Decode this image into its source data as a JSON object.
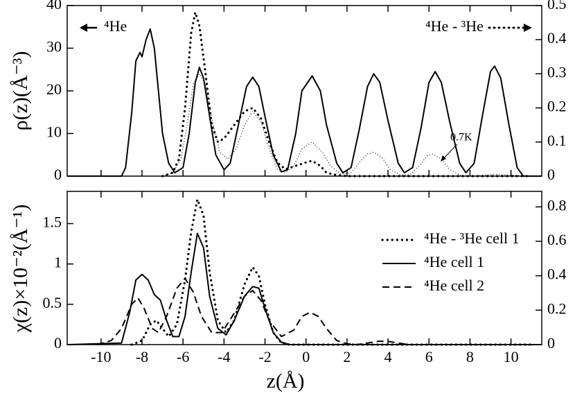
{
  "chart_data": [
    {
      "type": "line",
      "ylabel": "ρ(z)(Å⁻³)",
      "annotations": [
        "⁴He",
        "⁴He - ³He",
        "0.7K"
      ],
      "xlim": [
        -11.65,
        11.5
      ],
      "xticks": [
        -10,
        -8,
        -6,
        -4,
        -2,
        0,
        2,
        4,
        6,
        8,
        10
      ],
      "ylim": [
        0,
        40
      ],
      "yticks": [
        0,
        10,
        20,
        30,
        40
      ],
      "y2lim": [
        0,
        0.5
      ],
      "y2ticks": [
        0,
        0.1,
        0.2,
        0.3,
        0.4,
        0.5
      ],
      "series": [
        {
          "color": "#000000",
          "style": "solid",
          "x": [
            -11.6,
            -9.0,
            -8.8,
            -8.5,
            -8.3,
            -8.1,
            -8.0,
            -7.8,
            -7.6,
            -7.4,
            -7.2,
            -7.0,
            -6.7,
            -6.4,
            -6.0,
            -5.7,
            -5.4,
            -5.2,
            -5.0,
            -4.7,
            -4.4,
            -4.0,
            -3.7,
            -3.3,
            -2.9,
            -2.6,
            -2.3,
            -2.0,
            -1.6,
            -1.2,
            -0.9,
            -0.5,
            -0.2,
            0.3,
            0.7,
            1.0,
            1.5,
            1.8,
            2.2,
            2.6,
            3.0,
            3.3,
            3.6,
            4.0,
            4.5,
            4.8,
            5.2,
            5.6,
            6.0,
            6.3,
            6.6,
            7.0,
            7.5,
            7.8,
            8.2,
            8.6,
            9.0,
            9.2,
            9.5,
            9.9,
            10.3,
            10.6,
            11.5
          ],
          "values": [
            0,
            0,
            2,
            15,
            27,
            29,
            28,
            32,
            34.5,
            30,
            20,
            10,
            3,
            0.8,
            2,
            10,
            22,
            25.5,
            23,
            14,
            5,
            1.5,
            3,
            12,
            21,
            23.2,
            21,
            14,
            5,
            1,
            1.5,
            10,
            20,
            23.5,
            20,
            12,
            3,
            0.8,
            2,
            11,
            21,
            24,
            22,
            13,
            3,
            0.8,
            2,
            11,
            22,
            24.5,
            22,
            13,
            3,
            0.8,
            3,
            14,
            24.5,
            25.8,
            23,
            12,
            2,
            0,
            0
          ]
        },
        {
          "color": "#000000",
          "style": "dotted-thick",
          "axis": "y2",
          "x": [
            -7.0,
            -6.5,
            -6.2,
            -5.9,
            -5.6,
            -5.4,
            -5.2,
            -4.9,
            -4.6,
            -4.3,
            -4.0,
            -3.5,
            -3.0,
            -2.6,
            -2.2,
            -1.8,
            -1.4,
            -1.0,
            -0.5,
            0.0,
            0.3,
            0.7,
            1.0,
            1.5,
            2.0,
            11.0
          ],
          "values": [
            0,
            0.01,
            0.05,
            0.2,
            0.42,
            0.48,
            0.44,
            0.3,
            0.15,
            0.1,
            0.11,
            0.15,
            0.19,
            0.2,
            0.17,
            0.1,
            0.04,
            0.02,
            0.03,
            0.04,
            0.045,
            0.03,
            0.01,
            0.003,
            0,
            0
          ]
        },
        {
          "color": "#000000",
          "style": "dotted-thin",
          "axis": "y2",
          "x": [
            -7.0,
            -6.5,
            -6.1,
            -5.8,
            -5.5,
            -5.2,
            -4.9,
            -4.6,
            -4.2,
            -3.8,
            -3.4,
            -3.0,
            -2.6,
            -2.2,
            -1.8,
            -1.4,
            -1.0,
            -0.6,
            -0.2,
            0.3,
            0.8,
            1.2,
            1.7,
            2.2,
            2.6,
            3.0,
            3.3,
            3.7,
            4.1,
            4.6,
            5.1,
            5.6,
            5.9,
            6.2,
            6.6,
            7.0,
            7.5,
            8.0,
            9.2,
            11.0
          ],
          "values": [
            0,
            0.01,
            0.05,
            0.15,
            0.27,
            0.3,
            0.27,
            0.17,
            0.07,
            0.05,
            0.08,
            0.15,
            0.19,
            0.16,
            0.08,
            0.02,
            0.01,
            0.03,
            0.08,
            0.1,
            0.07,
            0.03,
            0.005,
            0.01,
            0.04,
            0.065,
            0.07,
            0.055,
            0.02,
            0.003,
            0.005,
            0.035,
            0.06,
            0.065,
            0.05,
            0.02,
            0.003,
            0,
            0.005,
            0
          ]
        }
      ]
    },
    {
      "type": "line",
      "xlabel": "z(Å)",
      "ylabel": "χ(z)×10⁻²(Å⁻¹)",
      "xlim": [
        -11.65,
        11.5
      ],
      "xticks": [
        -10,
        -8,
        -6,
        -4,
        -2,
        0,
        2,
        4,
        6,
        8,
        10
      ],
      "ylim": [
        0,
        1.9
      ],
      "yticks": [
        0,
        0.5,
        1,
        1.5
      ],
      "y2lim": [
        0,
        0.89
      ],
      "y2ticks": [
        0,
        0.2,
        0.4,
        0.6,
        0.8
      ],
      "legend": "right",
      "series": [
        {
          "name": "⁴He - ³He cell 1",
          "color": "#000000",
          "style": "dotted-thick",
          "x": [
            -8.5,
            -8.0,
            -7.6,
            -7.3,
            -7.0,
            -6.7,
            -6.3,
            -5.9,
            -5.6,
            -5.3,
            -5.0,
            -4.7,
            -4.3,
            -3.9,
            -3.5,
            -3.0,
            -2.6,
            -2.3,
            -2.0,
            -1.6,
            -1.2,
            -0.8,
            11.0
          ],
          "values": [
            0,
            0.05,
            0.25,
            0.3,
            0.2,
            0.1,
            0.25,
            0.8,
            1.4,
            1.8,
            1.6,
            0.9,
            0.3,
            0.15,
            0.3,
            0.75,
            0.96,
            0.85,
            0.5,
            0.15,
            0.02,
            0,
            0
          ]
        },
        {
          "name": "⁴He cell 1",
          "color": "#000000",
          "style": "solid",
          "x": [
            -11.6,
            -9.0,
            -8.6,
            -8.3,
            -8.0,
            -7.7,
            -7.4,
            -7.1,
            -6.8,
            -6.5,
            -6.2,
            -5.9,
            -5.6,
            -5.3,
            -5.0,
            -4.7,
            -4.3,
            -3.9,
            -3.5,
            -3.0,
            -2.6,
            -2.3,
            -2.0,
            -1.6,
            -1.2,
            -0.8,
            11.5
          ],
          "values": [
            0,
            0.02,
            0.4,
            0.8,
            0.87,
            0.8,
            0.62,
            0.55,
            0.3,
            0.1,
            0.1,
            0.35,
            0.9,
            1.38,
            1.2,
            0.6,
            0.2,
            0.12,
            0.3,
            0.6,
            0.72,
            0.7,
            0.45,
            0.15,
            0.03,
            0,
            0
          ]
        },
        {
          "name": "⁴He cell 2",
          "color": "#000000",
          "style": "dashed",
          "x": [
            -10.2,
            -9.5,
            -9.0,
            -8.5,
            -8.2,
            -7.9,
            -7.5,
            -7.2,
            -6.8,
            -6.3,
            -5.9,
            -5.5,
            -5.1,
            -4.6,
            -4.1,
            -3.6,
            -3.0,
            -2.6,
            -2.2,
            -1.8,
            -1.2,
            -0.6,
            -0.2,
            0.2,
            0.6,
            1.0,
            1.5,
            2.0,
            2.5,
            3.0,
            3.5,
            4.0,
            4.5,
            5.0,
            11.0
          ],
          "values": [
            0,
            0.05,
            0.2,
            0.5,
            0.58,
            0.45,
            0.2,
            0.15,
            0.35,
            0.7,
            0.82,
            0.65,
            0.35,
            0.15,
            0.15,
            0.35,
            0.6,
            0.67,
            0.55,
            0.3,
            0.1,
            0.18,
            0.35,
            0.4,
            0.35,
            0.2,
            0.05,
            0.01,
            0,
            0.02,
            0.04,
            0.04,
            0.02,
            0,
            0
          ]
        }
      ]
    }
  ]
}
